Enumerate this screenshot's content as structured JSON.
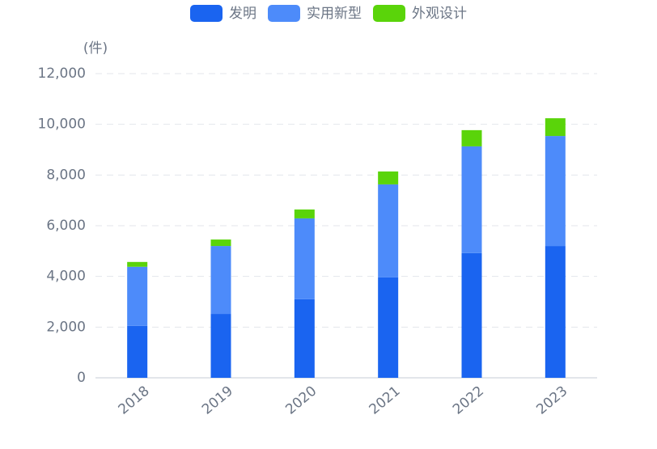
{
  "chart_data": {
    "type": "stacked_bar",
    "unit_label": "(件)",
    "categories": [
      "2018",
      "2019",
      "2020",
      "2021",
      "2022",
      "2023"
    ],
    "series": [
      {
        "name": "发明",
        "color": "#1a64f0",
        "values": [
          2050,
          2520,
          3100,
          3960,
          4920,
          5200
        ]
      },
      {
        "name": "实用新型",
        "color": "#4d8bfa",
        "values": [
          2330,
          2680,
          3190,
          3670,
          4210,
          4340
        ]
      },
      {
        "name": "外观设计",
        "color": "#5ad40a",
        "values": [
          190,
          255,
          350,
          510,
          640,
          700
        ]
      }
    ],
    "ylim": [
      0,
      12000
    ],
    "yticks": [
      0,
      {
        "value": 2000,
        "label": "2,000"
      },
      {
        "value": 4000,
        "label": "4,000"
      },
      {
        "value": 6000,
        "label": "6,000"
      },
      {
        "value": 8000,
        "label": "8,000"
      },
      {
        "value": 10000,
        "label": "10,000"
      },
      {
        "value": 12000,
        "label": "12,000"
      }
    ],
    "grid": true,
    "legend": "top"
  }
}
